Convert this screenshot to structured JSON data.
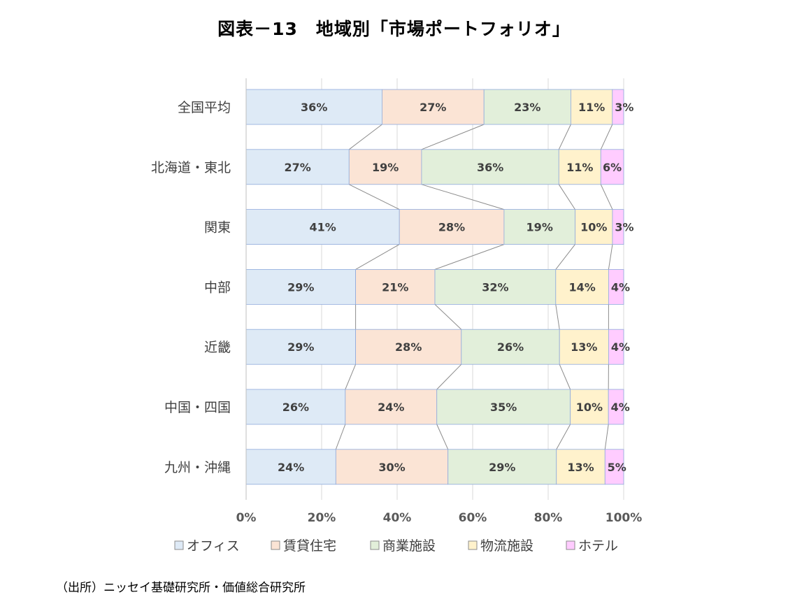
{
  "title": "図表－13　地域別「市場ポートフォリオ」",
  "source": "（出所）ニッセイ基礎研究所・価値総合研究所",
  "chart_data": {
    "type": "bar",
    "orientation": "horizontal",
    "stacked": "percent",
    "title": "図表－13　地域別「市場ポートフォリオ」",
    "categories": [
      "全国平均",
      "北海道・東北",
      "関東",
      "中部",
      "近畿",
      "中国・四国",
      "九州・沖縄"
    ],
    "series": [
      {
        "name": "オフィス",
        "color": "#DEEAF6",
        "values": [
          36,
          27,
          41,
          29,
          29,
          26,
          24
        ]
      },
      {
        "name": "賃貸住宅",
        "color": "#FBE4D5",
        "values": [
          27,
          19,
          28,
          21,
          28,
          24,
          30
        ]
      },
      {
        "name": "商業施設",
        "color": "#E2EFDA",
        "values": [
          23,
          36,
          19,
          32,
          26,
          35,
          29
        ]
      },
      {
        "name": "物流施設",
        "color": "#FFF2CC",
        "values": [
          11,
          11,
          10,
          14,
          13,
          10,
          13
        ]
      },
      {
        "name": "ホテル",
        "color": "#FFCCFF",
        "values": [
          3,
          6,
          3,
          4,
          4,
          4,
          5
        ]
      }
    ],
    "value_labels": [
      [
        "36%",
        "27%",
        "23%",
        "11%",
        "3%"
      ],
      [
        "27%",
        "19%",
        "36%",
        "11%",
        "6%"
      ],
      [
        "41%",
        "28%",
        "19%",
        "10%",
        "3%"
      ],
      [
        "29%",
        "21%",
        "32%",
        "14%",
        "4%"
      ],
      [
        "29%",
        "28%",
        "26%",
        "13%",
        "4%"
      ],
      [
        "26%",
        "24%",
        "35%",
        "10%",
        "4%"
      ],
      [
        "24%",
        "30%",
        "29%",
        "13%",
        "5%"
      ]
    ],
    "x_ticks": [
      "0%",
      "20%",
      "40%",
      "60%",
      "80%",
      "100%"
    ],
    "xlim": [
      0,
      100
    ],
    "gridlines": true,
    "series_lines": true,
    "legend_position": "bottom"
  }
}
